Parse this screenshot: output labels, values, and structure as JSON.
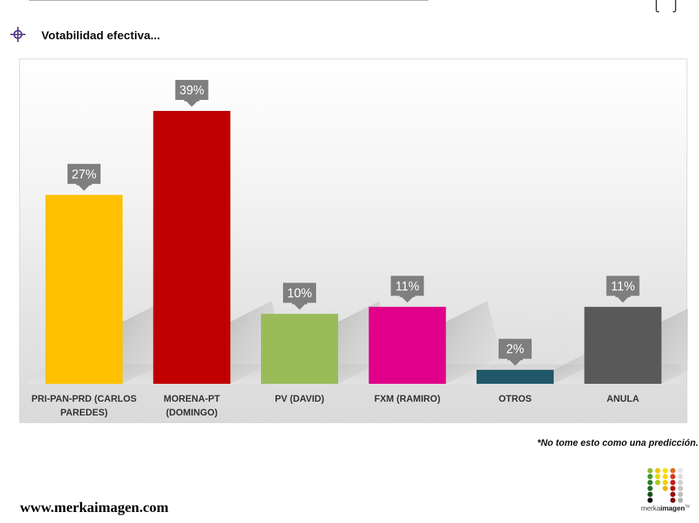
{
  "header": {
    "title": "Votabilidad efectiva..."
  },
  "chart_data": {
    "type": "bar",
    "categories": [
      [
        "PRI-PAN-PRD (CARLOS",
        "PAREDES)"
      ],
      [
        "MORENA-PT",
        "(DOMINGO)"
      ],
      [
        "PV (DAVID)"
      ],
      [
        "FXM (RAMIRO)"
      ],
      [
        "OTROS"
      ],
      [
        "ANULA"
      ]
    ],
    "values": [
      27,
      39,
      10,
      11,
      2,
      11
    ],
    "value_labels": [
      "27%",
      "39%",
      "10%",
      "11%",
      "2%",
      "11%"
    ],
    "colors": [
      "#FFC000",
      "#C00000",
      "#9BBB59",
      "#E0008A",
      "#215868",
      "#595959"
    ],
    "label_box_color": "#7f7f7f",
    "title": "",
    "xlabel": "",
    "ylabel": "",
    "ylim": [
      0,
      45
    ],
    "grid": false,
    "legend": "none"
  },
  "footer": {
    "note": "*No tome esto como una predicción.",
    "website": "www.merkaimagen.com",
    "logo_text_light": "merka",
    "logo_text_bold": "imagen",
    "logo_tm": "TM"
  },
  "icons": {
    "title_icon": "crosshair-icon",
    "corner": "bracket-icon"
  }
}
